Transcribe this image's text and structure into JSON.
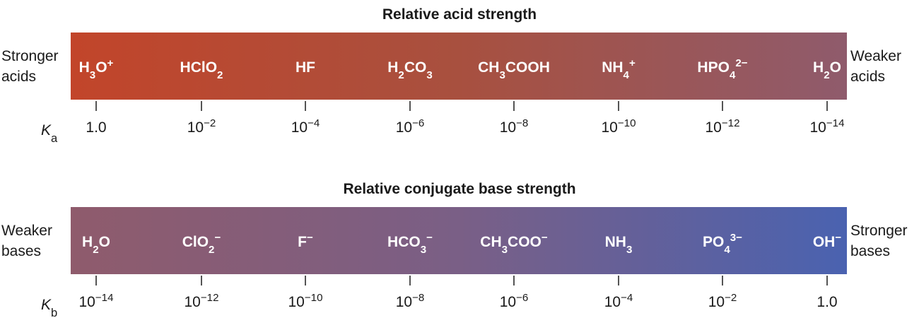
{
  "panels": [
    {
      "title": "Relative acid strength",
      "left_label": [
        "Stronger",
        "acids"
      ],
      "right_label": [
        "Weaker",
        "acids"
      ],
      "species": [
        [
          {
            "text": "H"
          },
          {
            "text": "3",
            "pos": "sub"
          },
          {
            "text": "O"
          },
          {
            "text": "+",
            "pos": "sup"
          }
        ],
        [
          {
            "text": "HClO"
          },
          {
            "text": "2",
            "pos": "sub"
          }
        ],
        [
          {
            "text": "HF"
          }
        ],
        [
          {
            "text": "H"
          },
          {
            "text": "2",
            "pos": "sub"
          },
          {
            "text": "CO"
          },
          {
            "text": "3",
            "pos": "sub"
          }
        ],
        [
          {
            "text": "CH"
          },
          {
            "text": "3",
            "pos": "sub"
          },
          {
            "text": "COOH"
          }
        ],
        [
          {
            "text": "NH"
          },
          {
            "text": "4",
            "pos": "sub"
          },
          {
            "text": "+",
            "pos": "sup"
          }
        ],
        [
          {
            "text": "HPO"
          },
          {
            "text": "4",
            "pos": "sub"
          },
          {
            "text": "2−",
            "pos": "sup"
          }
        ],
        [
          {
            "text": "H"
          },
          {
            "text": "2",
            "pos": "sub"
          },
          {
            "text": "O"
          }
        ]
      ],
      "constant": [
        {
          "text": "K",
          "style": "italic"
        },
        {
          "text": "a",
          "pos": "sub"
        }
      ],
      "ticks": [
        [
          {
            "text": "1.0"
          }
        ],
        [
          {
            "text": "10"
          },
          {
            "text": "−2",
            "pos": "sup"
          }
        ],
        [
          {
            "text": "10"
          },
          {
            "text": "−4",
            "pos": "sup"
          }
        ],
        [
          {
            "text": "10"
          },
          {
            "text": "−6",
            "pos": "sup"
          }
        ],
        [
          {
            "text": "10"
          },
          {
            "text": "−8",
            "pos": "sup"
          }
        ],
        [
          {
            "text": "10"
          },
          {
            "text": "−10",
            "pos": "sup"
          }
        ],
        [
          {
            "text": "10"
          },
          {
            "text": "−12",
            "pos": "sup"
          }
        ],
        [
          {
            "text": "10"
          },
          {
            "text": "−14",
            "pos": "sup"
          }
        ]
      ],
      "colors": [
        "#c2452a",
        "#a8503f",
        "#8f5b6c"
      ]
    },
    {
      "title": "Relative conjugate base strength",
      "left_label": [
        "Weaker",
        "bases"
      ],
      "right_label": [
        "Stronger",
        "bases"
      ],
      "species": [
        [
          {
            "text": "H"
          },
          {
            "text": "2",
            "pos": "sub"
          },
          {
            "text": "O"
          }
        ],
        [
          {
            "text": "ClO"
          },
          {
            "text": "2",
            "pos": "sub"
          },
          {
            "text": "−",
            "pos": "sup"
          }
        ],
        [
          {
            "text": "F"
          },
          {
            "text": "−",
            "pos": "sup"
          }
        ],
        [
          {
            "text": "HCO"
          },
          {
            "text": "3",
            "pos": "sub"
          },
          {
            "text": "−",
            "pos": "sup"
          }
        ],
        [
          {
            "text": "CH"
          },
          {
            "text": "3",
            "pos": "sub"
          },
          {
            "text": "COO"
          },
          {
            "text": "−",
            "pos": "sup"
          }
        ],
        [
          {
            "text": "NH"
          },
          {
            "text": "3",
            "pos": "sub"
          }
        ],
        [
          {
            "text": "PO"
          },
          {
            "text": "4",
            "pos": "sub"
          },
          {
            "text": "3−",
            "pos": "sup"
          }
        ],
        [
          {
            "text": "OH"
          },
          {
            "text": "−",
            "pos": "sup"
          }
        ]
      ],
      "constant": [
        {
          "text": "K",
          "style": "italic"
        },
        {
          "text": "b",
          "pos": "sub"
        }
      ],
      "ticks": [
        [
          {
            "text": "10"
          },
          {
            "text": "−14",
            "pos": "sup"
          }
        ],
        [
          {
            "text": "10"
          },
          {
            "text": "−12",
            "pos": "sup"
          }
        ],
        [
          {
            "text": "10"
          },
          {
            "text": "−10",
            "pos": "sup"
          }
        ],
        [
          {
            "text": "10"
          },
          {
            "text": "−8",
            "pos": "sup"
          }
        ],
        [
          {
            "text": "10"
          },
          {
            "text": "−6",
            "pos": "sup"
          }
        ],
        [
          {
            "text": "10"
          },
          {
            "text": "−4",
            "pos": "sup"
          }
        ],
        [
          {
            "text": "10"
          },
          {
            "text": "−2",
            "pos": "sup"
          }
        ],
        [
          {
            "text": "1.0"
          }
        ]
      ],
      "colors": [
        "#8f5b6c",
        "#7a5f86",
        "#4a62b0"
      ]
    }
  ]
}
